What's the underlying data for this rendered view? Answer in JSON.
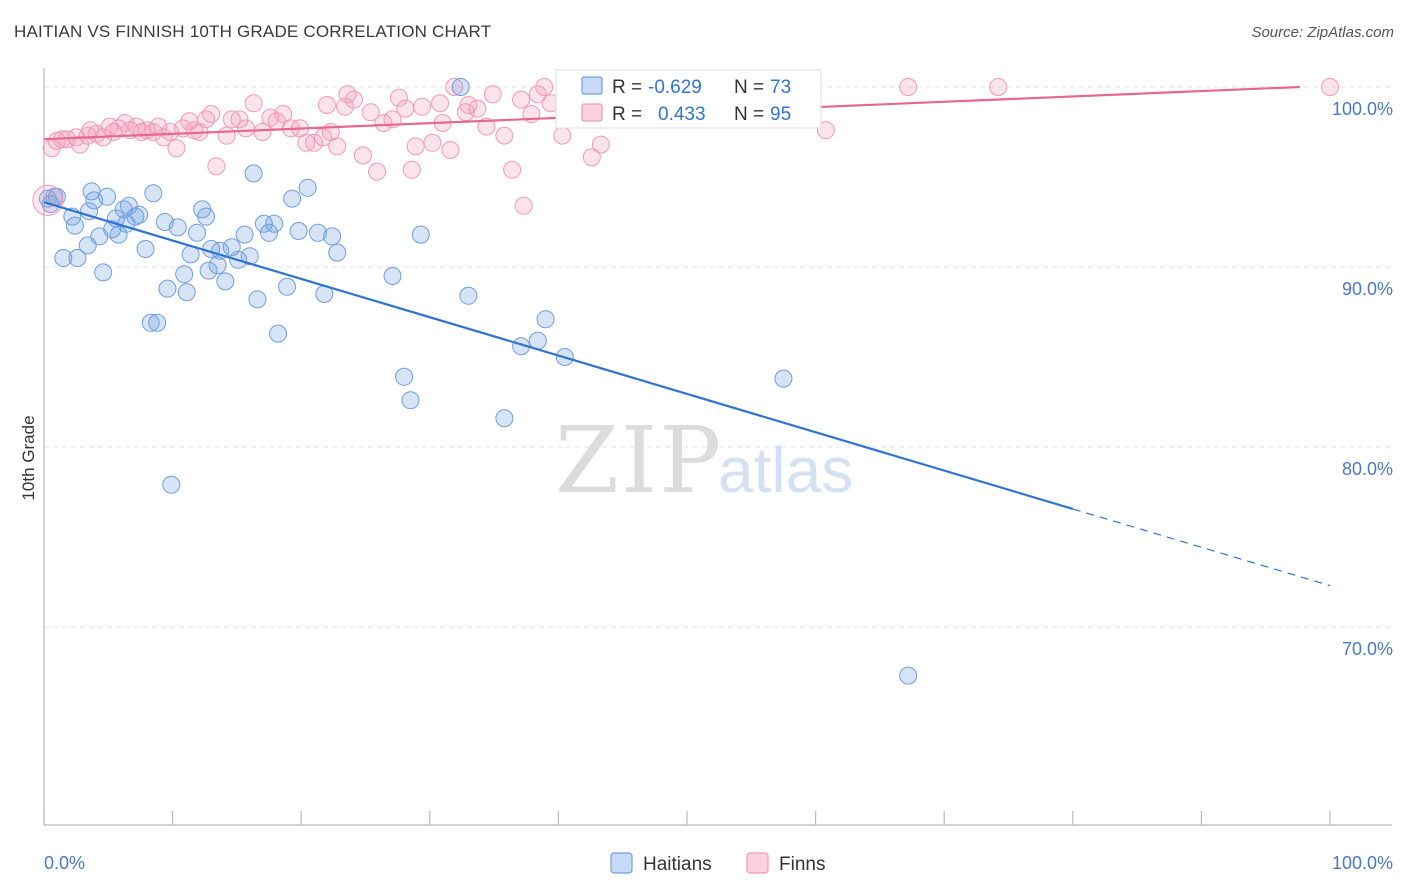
{
  "title": "HAITIAN VS FINNISH 10TH GRADE CORRELATION CHART",
  "source": "Source: ZipAtlas.com",
  "watermark": {
    "zip": "ZIP",
    "atlas": "atlas"
  },
  "colors": {
    "haitians": "#6f9fe0",
    "haitians_line": "#2f74d0",
    "finns": "#f29ab8",
    "finns_line": "#e8678f",
    "tick_text": "#4a78c8",
    "grid": "#e3e3e3"
  },
  "legend": {
    "rows": [
      {
        "r_label": "R =",
        "r_value": "-0.629",
        "n_label": "N =",
        "n_value": "73"
      },
      {
        "r_label": "R =",
        "r_value": "0.433",
        "n_label": "N =",
        "n_value": "95"
      }
    ]
  },
  "chart_data": {
    "type": "scatter",
    "title": "HAITIAN VS FINNISH 10TH GRADE CORRELATION CHART",
    "xlabel": "",
    "ylabel": "10th Grade",
    "xlim": [
      0,
      100
    ],
    "ylim": [
      59.0,
      101.5
    ],
    "x_tick_labels": [
      "0.0%",
      "100.0%"
    ],
    "y_ticks": [
      {
        "value": 100,
        "label": "100.0%"
      },
      {
        "value": 90,
        "label": "90.0%"
      },
      {
        "value": 80,
        "label": "80.0%"
      },
      {
        "value": 70,
        "label": "70.0%"
      }
    ],
    "grid": true,
    "legend_position": "bottom",
    "series": [
      {
        "name": "Haitians",
        "r": -0.629,
        "n": 73,
        "trend": {
          "x0": 0,
          "y0": 93.6,
          "x1": 100,
          "y1": 72.3,
          "solid_until_x": 80
        },
        "points": [
          [
            0.5,
            93.5
          ],
          [
            0.3,
            93.8
          ],
          [
            0.8,
            93.9
          ],
          [
            1.5,
            90.5
          ],
          [
            2.2,
            92.8
          ],
          [
            2.4,
            92.3
          ],
          [
            2.6,
            90.5
          ],
          [
            3.5,
            93.1
          ],
          [
            3.4,
            91.2
          ],
          [
            3.7,
            94.2
          ],
          [
            3.9,
            93.7
          ],
          [
            4.3,
            91.7
          ],
          [
            4.6,
            89.7
          ],
          [
            4.9,
            93.9
          ],
          [
            5.3,
            92.1
          ],
          [
            5.6,
            92.7
          ],
          [
            5.8,
            91.8
          ],
          [
            6.2,
            93.2
          ],
          [
            6.4,
            92.4
          ],
          [
            6.6,
            93.4
          ],
          [
            7.1,
            92.8
          ],
          [
            7.4,
            92.9
          ],
          [
            7.9,
            91.0
          ],
          [
            8.3,
            86.9
          ],
          [
            8.5,
            94.1
          ],
          [
            8.8,
            86.9
          ],
          [
            9.4,
            92.5
          ],
          [
            9.6,
            88.8
          ],
          [
            9.9,
            77.9
          ],
          [
            10.4,
            92.2
          ],
          [
            10.9,
            89.6
          ],
          [
            11.1,
            88.6
          ],
          [
            11.4,
            90.7
          ],
          [
            11.9,
            91.9
          ],
          [
            12.3,
            93.2
          ],
          [
            12.6,
            92.8
          ],
          [
            12.8,
            89.8
          ],
          [
            13.0,
            91.0
          ],
          [
            13.5,
            90.1
          ],
          [
            13.7,
            90.9
          ],
          [
            14.1,
            89.2
          ],
          [
            14.6,
            91.1
          ],
          [
            15.1,
            90.4
          ],
          [
            15.6,
            91.8
          ],
          [
            16.0,
            90.6
          ],
          [
            16.3,
            95.2
          ],
          [
            16.6,
            88.2
          ],
          [
            17.1,
            92.4
          ],
          [
            17.5,
            91.9
          ],
          [
            17.9,
            92.4
          ],
          [
            18.2,
            86.3
          ],
          [
            18.9,
            88.9
          ],
          [
            19.3,
            93.8
          ],
          [
            19.8,
            92.0
          ],
          [
            20.5,
            94.4
          ],
          [
            21.3,
            91.9
          ],
          [
            21.8,
            88.5
          ],
          [
            22.4,
            91.7
          ],
          [
            22.8,
            90.8
          ],
          [
            27.1,
            89.5
          ],
          [
            28.0,
            83.9
          ],
          [
            28.5,
            82.6
          ],
          [
            29.3,
            91.8
          ],
          [
            32.4,
            100.0
          ],
          [
            33.0,
            88.4
          ],
          [
            35.8,
            81.6
          ],
          [
            37.1,
            85.6
          ],
          [
            38.4,
            85.9
          ],
          [
            39.0,
            87.1
          ],
          [
            40.5,
            85.0
          ],
          [
            57.5,
            83.8
          ],
          [
            67.2,
            67.3
          ],
          [
            1.0,
            93.9
          ]
        ]
      },
      {
        "name": "Finns",
        "r": 0.433,
        "n": 95,
        "trend": {
          "x0": 0,
          "y0": 97.1,
          "x1": 100,
          "y1": 100.0
        },
        "points": [
          [
            0.6,
            96.6
          ],
          [
            1.0,
            97.0
          ],
          [
            1.4,
            97.1
          ],
          [
            1.8,
            97.1
          ],
          [
            2.5,
            97.2
          ],
          [
            2.8,
            96.8
          ],
          [
            3.4,
            97.3
          ],
          [
            3.6,
            97.6
          ],
          [
            4.1,
            97.4
          ],
          [
            4.6,
            97.2
          ],
          [
            5.1,
            97.8
          ],
          [
            5.4,
            97.5
          ],
          [
            5.8,
            97.7
          ],
          [
            6.3,
            98.0
          ],
          [
            6.7,
            97.6
          ],
          [
            7.2,
            97.8
          ],
          [
            7.6,
            97.5
          ],
          [
            8.0,
            97.6
          ],
          [
            8.5,
            97.5
          ],
          [
            8.9,
            97.8
          ],
          [
            9.3,
            97.2
          ],
          [
            9.8,
            97.5
          ],
          [
            10.3,
            96.6
          ],
          [
            10.8,
            97.7
          ],
          [
            11.3,
            98.1
          ],
          [
            11.7,
            97.6
          ],
          [
            12.1,
            97.5
          ],
          [
            12.6,
            98.2
          ],
          [
            13.0,
            98.5
          ],
          [
            13.4,
            95.6
          ],
          [
            14.2,
            97.3
          ],
          [
            14.6,
            98.2
          ],
          [
            15.2,
            98.2
          ],
          [
            15.7,
            97.7
          ],
          [
            16.3,
            99.1
          ],
          [
            17.0,
            97.5
          ],
          [
            17.6,
            98.3
          ],
          [
            18.1,
            98.1
          ],
          [
            18.6,
            98.5
          ],
          [
            19.2,
            97.7
          ],
          [
            19.9,
            97.7
          ],
          [
            20.4,
            96.9
          ],
          [
            21.0,
            96.9
          ],
          [
            21.7,
            97.2
          ],
          [
            22.3,
            97.5
          ],
          [
            22.8,
            96.7
          ],
          [
            23.4,
            98.9
          ],
          [
            23.6,
            99.6
          ],
          [
            24.1,
            99.3
          ],
          [
            24.8,
            96.2
          ],
          [
            25.4,
            98.6
          ],
          [
            25.9,
            95.3
          ],
          [
            26.4,
            98.0
          ],
          [
            27.1,
            98.2
          ],
          [
            27.6,
            99.4
          ],
          [
            28.1,
            98.8
          ],
          [
            28.6,
            95.4
          ],
          [
            28.9,
            96.7
          ],
          [
            29.4,
            98.9
          ],
          [
            30.2,
            96.9
          ],
          [
            30.8,
            99.1
          ],
          [
            31.6,
            96.5
          ],
          [
            31.9,
            100.0
          ],
          [
            32.8,
            98.6
          ],
          [
            33.0,
            99.0
          ],
          [
            33.7,
            98.8
          ],
          [
            34.4,
            97.8
          ],
          [
            34.9,
            99.6
          ],
          [
            35.8,
            97.3
          ],
          [
            36.4,
            95.4
          ],
          [
            37.1,
            99.3
          ],
          [
            37.3,
            93.4
          ],
          [
            37.9,
            98.5
          ],
          [
            38.4,
            99.6
          ],
          [
            38.9,
            100.0
          ],
          [
            39.4,
            99.1
          ],
          [
            40.3,
            97.3
          ],
          [
            40.8,
            98.3
          ],
          [
            41.1,
            99.0
          ],
          [
            42.6,
            96.1
          ],
          [
            43.3,
            96.8
          ],
          [
            45.0,
            99.5
          ],
          [
            46.1,
            99.2
          ],
          [
            47.4,
            99.8
          ],
          [
            49.2,
            99.8
          ],
          [
            51.5,
            99.5
          ],
          [
            53.2,
            99.9
          ],
          [
            56.6,
            99.9
          ],
          [
            57.9,
            100.0
          ],
          [
            60.8,
            97.6
          ],
          [
            67.2,
            100.0
          ],
          [
            74.2,
            100.0
          ],
          [
            100.0,
            100.0
          ],
          [
            31.0,
            98.0
          ],
          [
            22.0,
            99.0
          ]
        ]
      }
    ]
  }
}
